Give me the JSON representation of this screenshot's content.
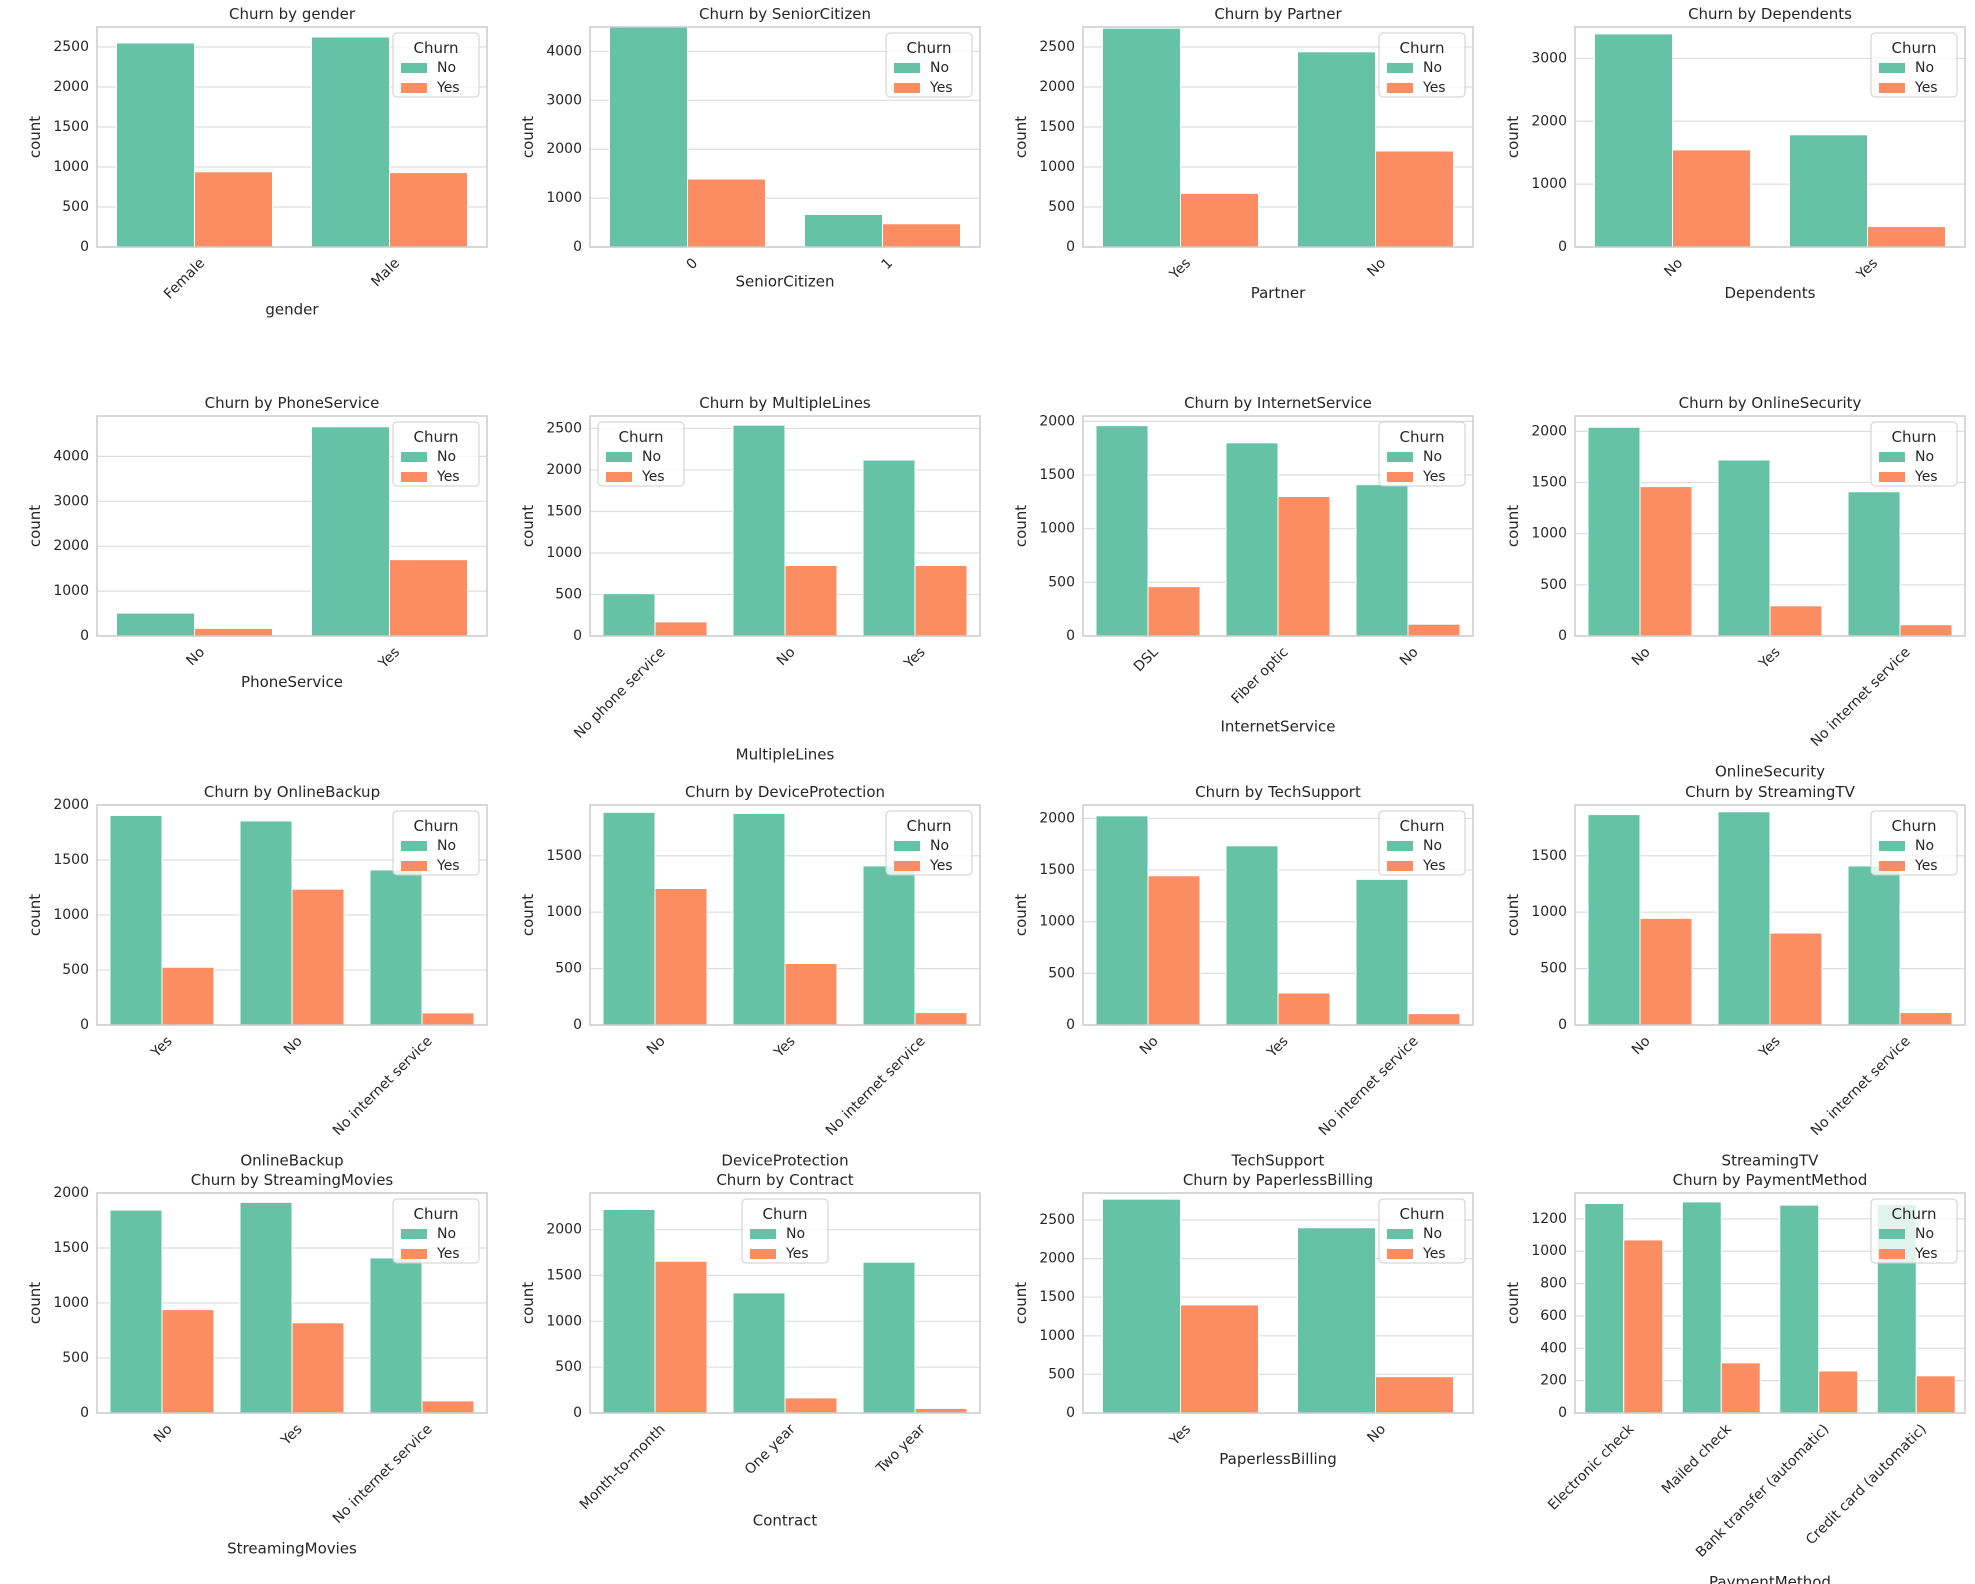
{
  "legend_title": "Churn",
  "series_names": [
    "No",
    "Yes"
  ],
  "colors": {
    "No": "#66c2a5",
    "Yes": "#fc8d62",
    "grid": "#dddddd",
    "frame": "#cccccc",
    "text": "#262626"
  },
  "chart_data": [
    {
      "type": "bar",
      "title": "Churn by gender",
      "xlabel": "gender",
      "ylabel": "count",
      "categories": [
        "Female",
        "Male"
      ],
      "ylim": [
        0,
        2750
      ],
      "yticks": [
        0,
        500,
        1000,
        1500,
        2000,
        2500
      ],
      "series": [
        {
          "name": "No",
          "values": [
            2550,
            2625
          ]
        },
        {
          "name": "Yes",
          "values": [
            940,
            930
          ]
        }
      ],
      "legend": "top-right"
    },
    {
      "type": "bar",
      "title": "Churn by SeniorCitizen",
      "xlabel": "SeniorCitizen",
      "ylabel": "count",
      "categories": [
        "0",
        "1"
      ],
      "ylim": [
        0,
        4500
      ],
      "yticks": [
        0,
        1000,
        2000,
        3000,
        4000
      ],
      "series": [
        {
          "name": "No",
          "values": [
            4500,
            665
          ]
        },
        {
          "name": "Yes",
          "values": [
            1390,
            475
          ]
        }
      ],
      "legend": "top-right"
    },
    {
      "type": "bar",
      "title": "Churn by Partner",
      "xlabel": "Partner",
      "ylabel": "count",
      "categories": [
        "Yes",
        "No"
      ],
      "ylim": [
        0,
        2750
      ],
      "yticks": [
        0,
        500,
        1000,
        1500,
        2000,
        2500
      ],
      "series": [
        {
          "name": "No",
          "values": [
            2735,
            2440
          ]
        },
        {
          "name": "Yes",
          "values": [
            670,
            1200
          ]
        }
      ],
      "legend": "top-right"
    },
    {
      "type": "bar",
      "title": "Churn by Dependents",
      "xlabel": "Dependents",
      "ylabel": "count",
      "categories": [
        "No",
        "Yes"
      ],
      "ylim": [
        0,
        3500
      ],
      "yticks": [
        0,
        1000,
        2000,
        3000
      ],
      "series": [
        {
          "name": "No",
          "values": [
            3390,
            1785
          ]
        },
        {
          "name": "Yes",
          "values": [
            1545,
            325
          ]
        }
      ],
      "legend": "top-right"
    },
    {
      "type": "bar",
      "title": "Churn by PhoneService",
      "xlabel": "PhoneService",
      "ylabel": "count",
      "categories": [
        "No",
        "Yes"
      ],
      "ylim": [
        0,
        4900
      ],
      "yticks": [
        0,
        1000,
        2000,
        3000,
        4000
      ],
      "series": [
        {
          "name": "No",
          "values": [
            510,
            4660
          ]
        },
        {
          "name": "Yes",
          "values": [
            170,
            1700
          ]
        }
      ],
      "legend": "top-right"
    },
    {
      "type": "bar",
      "title": "Churn by MultipleLines",
      "xlabel": "MultipleLines",
      "ylabel": "count",
      "categories": [
        "No phone service",
        "No",
        "Yes"
      ],
      "ylim": [
        0,
        2650
      ],
      "yticks": [
        0,
        500,
        1000,
        1500,
        2000,
        2500
      ],
      "series": [
        {
          "name": "No",
          "values": [
            510,
            2540,
            2120
          ]
        },
        {
          "name": "Yes",
          "values": [
            170,
            850,
            850
          ]
        }
      ],
      "legend": "top-left"
    },
    {
      "type": "bar",
      "title": "Churn by InternetService",
      "xlabel": "InternetService",
      "ylabel": "count",
      "categories": [
        "DSL",
        "Fiber optic",
        "No"
      ],
      "ylim": [
        0,
        2050
      ],
      "yticks": [
        0,
        500,
        1000,
        1500,
        2000
      ],
      "series": [
        {
          "name": "No",
          "values": [
            1960,
            1800,
            1410
          ]
        },
        {
          "name": "Yes",
          "values": [
            460,
            1300,
            110
          ]
        }
      ],
      "legend": "top-right"
    },
    {
      "type": "bar",
      "title": "Churn by OnlineSecurity",
      "xlabel": "OnlineSecurity",
      "ylabel": "count",
      "categories": [
        "No",
        "Yes",
        "No internet service"
      ],
      "ylim": [
        0,
        2150
      ],
      "yticks": [
        0,
        500,
        1000,
        1500,
        2000
      ],
      "series": [
        {
          "name": "No",
          "values": [
            2040,
            1720,
            1410
          ]
        },
        {
          "name": "Yes",
          "values": [
            1460,
            295,
            110
          ]
        }
      ],
      "legend": "top-right"
    },
    {
      "type": "bar",
      "title": "Churn by OnlineBackup",
      "xlabel": "OnlineBackup",
      "ylabel": "count",
      "categories": [
        "Yes",
        "No",
        "No internet service"
      ],
      "ylim": [
        0,
        2000
      ],
      "yticks": [
        0,
        500,
        1000,
        1500,
        2000
      ],
      "series": [
        {
          "name": "No",
          "values": [
            1905,
            1855,
            1410
          ]
        },
        {
          "name": "Yes",
          "values": [
            525,
            1235,
            110
          ]
        }
      ],
      "legend": "top-right"
    },
    {
      "type": "bar",
      "title": "Churn by DeviceProtection",
      "xlabel": "DeviceProtection",
      "ylabel": "count",
      "categories": [
        "No",
        "Yes",
        "No internet service"
      ],
      "ylim": [
        0,
        1950
      ],
      "yticks": [
        0,
        500,
        1000,
        1500
      ],
      "series": [
        {
          "name": "No",
          "values": [
            1885,
            1875,
            1410
          ]
        },
        {
          "name": "Yes",
          "values": [
            1210,
            545,
            110
          ]
        }
      ],
      "legend": "top-right"
    },
    {
      "type": "bar",
      "title": "Churn by TechSupport",
      "xlabel": "TechSupport",
      "ylabel": "count",
      "categories": [
        "No",
        "Yes",
        "No internet service"
      ],
      "ylim": [
        0,
        2130
      ],
      "yticks": [
        0,
        500,
        1000,
        1500,
        2000
      ],
      "series": [
        {
          "name": "No",
          "values": [
            2025,
            1735,
            1410
          ]
        },
        {
          "name": "Yes",
          "values": [
            1445,
            310,
            110
          ]
        }
      ],
      "legend": "top-right"
    },
    {
      "type": "bar",
      "title": "Churn by StreamingTV",
      "xlabel": "StreamingTV",
      "ylabel": "count",
      "categories": [
        "No",
        "Yes",
        "No internet service"
      ],
      "ylim": [
        0,
        1950
      ],
      "yticks": [
        0,
        500,
        1000,
        1500
      ],
      "series": [
        {
          "name": "No",
          "values": [
            1865,
            1890,
            1410
          ]
        },
        {
          "name": "Yes",
          "values": [
            945,
            815,
            110
          ]
        }
      ],
      "legend": "top-right"
    },
    {
      "type": "bar",
      "title": "Churn by StreamingMovies",
      "xlabel": "StreamingMovies",
      "ylabel": "count",
      "categories": [
        "No",
        "Yes",
        "No internet service"
      ],
      "ylim": [
        0,
        2000
      ],
      "yticks": [
        0,
        500,
        1000,
        1500,
        2000
      ],
      "series": [
        {
          "name": "No",
          "values": [
            1845,
            1915,
            1410
          ]
        },
        {
          "name": "Yes",
          "values": [
            940,
            820,
            110
          ]
        }
      ],
      "legend": "top-right"
    },
    {
      "type": "bar",
      "title": "Churn by Contract",
      "xlabel": "Contract",
      "ylabel": "count",
      "categories": [
        "Month-to-month",
        "One year",
        "Two year"
      ],
      "ylim": [
        0,
        2400
      ],
      "yticks": [
        0,
        500,
        1000,
        1500,
        2000
      ],
      "series": [
        {
          "name": "No",
          "values": [
            2220,
            1310,
            1645
          ]
        },
        {
          "name": "Yes",
          "values": [
            1655,
            165,
            50
          ]
        }
      ],
      "legend": "top-center"
    },
    {
      "type": "bar",
      "title": "Churn by PaperlessBilling",
      "xlabel": "PaperlessBilling",
      "ylabel": "count",
      "categories": [
        "Yes",
        "No"
      ],
      "ylim": [
        0,
        2850
      ],
      "yticks": [
        0,
        500,
        1000,
        1500,
        2000,
        2500
      ],
      "series": [
        {
          "name": "No",
          "values": [
            2770,
            2400
          ]
        },
        {
          "name": "Yes",
          "values": [
            1400,
            470
          ]
        }
      ],
      "legend": "top-right"
    },
    {
      "type": "bar",
      "title": "Churn by PaymentMethod",
      "xlabel": "PaymentMethod",
      "ylabel": "count",
      "categories": [
        "Electronic check",
        "Mailed check",
        "Bank transfer (automatic)",
        "Credit card (automatic)"
      ],
      "ylim": [
        0,
        1360
      ],
      "yticks": [
        0,
        200,
        400,
        600,
        800,
        1000,
        1200
      ],
      "series": [
        {
          "name": "No",
          "values": [
            1295,
            1305,
            1285,
            1290
          ]
        },
        {
          "name": "Yes",
          "values": [
            1070,
            310,
            260,
            230
          ]
        }
      ],
      "legend": "top-right"
    }
  ]
}
